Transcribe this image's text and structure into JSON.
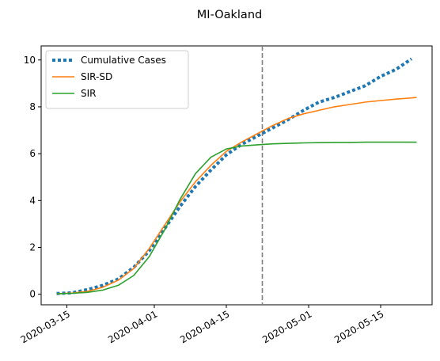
{
  "chart_data": {
    "type": "line",
    "title": "MI-Oakland",
    "xlabel": "",
    "ylabel": "",
    "x_axis": {
      "min": "2020-03-10",
      "max": "2020-05-25",
      "ticks": [
        "2020-03-15",
        "2020-04-01",
        "2020-04-15",
        "2020-05-01",
        "2020-05-15"
      ]
    },
    "ylim": [
      -0.45,
      10.6
    ],
    "yticks": [
      0,
      2,
      4,
      6,
      8,
      10
    ],
    "vline": {
      "x": "2020-04-22",
      "style": "dashed",
      "color": "#7f7f7f"
    },
    "legend": {
      "position": "top-left"
    },
    "grid": false,
    "series": [
      {
        "name": "Cumulative Cases",
        "style": "dotted",
        "color": "#1f77b4",
        "x": [
          "2020-03-13",
          "2020-03-16",
          "2020-03-19",
          "2020-03-22",
          "2020-03-25",
          "2020-03-28",
          "2020-03-31",
          "2020-04-03",
          "2020-04-06",
          "2020-04-09",
          "2020-04-12",
          "2020-04-15",
          "2020-04-18",
          "2020-04-21",
          "2020-04-24",
          "2020-04-27",
          "2020-04-30",
          "2020-05-03",
          "2020-05-06",
          "2020-05-09",
          "2020-05-12",
          "2020-05-15",
          "2020-05-18",
          "2020-05-21"
        ],
        "values": [
          0.03,
          0.06,
          0.2,
          0.38,
          0.65,
          1.15,
          1.85,
          2.8,
          3.75,
          4.6,
          5.3,
          5.95,
          6.4,
          6.75,
          7.1,
          7.45,
          7.85,
          8.2,
          8.4,
          8.65,
          8.9,
          9.3,
          9.6,
          10.05
        ]
      },
      {
        "name": "SIR-SD",
        "style": "solid",
        "color": "#ff7f0e",
        "x": [
          "2020-03-13",
          "2020-03-16",
          "2020-03-19",
          "2020-03-22",
          "2020-03-25",
          "2020-03-28",
          "2020-03-31",
          "2020-04-03",
          "2020-04-06",
          "2020-04-09",
          "2020-04-12",
          "2020-04-15",
          "2020-04-18",
          "2020-04-21",
          "2020-04-24",
          "2020-04-27",
          "2020-04-30",
          "2020-05-03",
          "2020-05-06",
          "2020-05-09",
          "2020-05-12",
          "2020-05-15",
          "2020-05-18",
          "2020-05-21",
          "2020-05-22"
        ],
        "values": [
          0.02,
          0.05,
          0.12,
          0.3,
          0.6,
          1.1,
          1.95,
          2.95,
          3.95,
          4.8,
          5.5,
          6.1,
          6.5,
          6.85,
          7.2,
          7.5,
          7.7,
          7.85,
          8.0,
          8.1,
          8.2,
          8.27,
          8.33,
          8.38,
          8.4
        ]
      },
      {
        "name": "SIR",
        "style": "solid",
        "color": "#2ca02c",
        "x": [
          "2020-03-13",
          "2020-03-16",
          "2020-03-19",
          "2020-03-22",
          "2020-03-25",
          "2020-03-28",
          "2020-03-31",
          "2020-04-03",
          "2020-04-06",
          "2020-04-09",
          "2020-04-12",
          "2020-04-15",
          "2020-04-18",
          "2020-04-21",
          "2020-04-24",
          "2020-04-27",
          "2020-04-30",
          "2020-05-03",
          "2020-05-06",
          "2020-05-09",
          "2020-05-12",
          "2020-05-15",
          "2020-05-18",
          "2020-05-21",
          "2020-05-22"
        ],
        "values": [
          0.02,
          0.04,
          0.08,
          0.18,
          0.38,
          0.8,
          1.6,
          2.75,
          4.05,
          5.15,
          5.85,
          6.2,
          6.33,
          6.38,
          6.42,
          6.44,
          6.46,
          6.47,
          6.48,
          6.48,
          6.49,
          6.49,
          6.49,
          6.49,
          6.49
        ]
      }
    ]
  }
}
